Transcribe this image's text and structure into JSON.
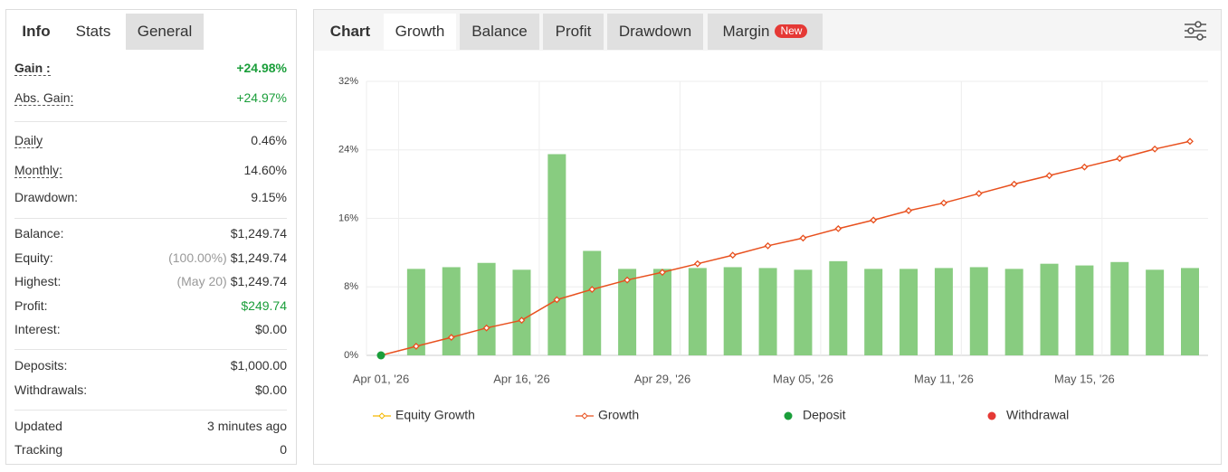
{
  "left_panel": {
    "tabs": [
      "Info",
      "Stats",
      "General"
    ],
    "groups": [
      [
        {
          "label": "Gain :",
          "value": "+24.98%",
          "color": "#1a9e3a",
          "bold": true,
          "underlined": true
        },
        {
          "label": "Abs. Gain:",
          "value": "+24.97%",
          "color": "#1a9e3a",
          "underlined": true
        }
      ],
      [
        {
          "label": "Daily",
          "value": "0.46%",
          "underlined": true
        },
        {
          "label": "Monthly:",
          "value": "14.60%",
          "underlined": true
        },
        {
          "label": "Drawdown:",
          "value": "9.15%"
        }
      ],
      [
        {
          "label": "Balance:",
          "value": "$1,249.74"
        },
        {
          "label": "Equity:",
          "note": "(100.00%)",
          "value": "$1,249.74"
        },
        {
          "label": "Highest:",
          "note": "(May 20)",
          "value": "$1,249.74"
        },
        {
          "label": "Profit:",
          "value": "$249.74",
          "color": "#1a9e3a"
        },
        {
          "label": "Interest:",
          "value": "$0.00"
        }
      ],
      [
        {
          "label": "Deposits:",
          "value": "$1,000.00"
        },
        {
          "label": "Withdrawals:",
          "value": "$0.00"
        }
      ],
      [
        {
          "label": "Updated",
          "value": "3 minutes ago"
        },
        {
          "label": "Tracking",
          "value": "0"
        }
      ]
    ]
  },
  "chart_panel": {
    "tabs": [
      {
        "label": "Chart"
      },
      {
        "label": "Growth"
      },
      {
        "label": "Balance"
      },
      {
        "label": "Profit"
      },
      {
        "label": "Drawdown"
      },
      {
        "label": "Margin",
        "badge": "New"
      }
    ]
  },
  "chart_data": {
    "type": "bar_line",
    "categories": [
      "Apr 01, '26",
      null,
      null,
      null,
      "Apr 16, '26",
      null,
      null,
      null,
      "Apr 29, '26",
      null,
      null,
      null,
      "May 05, '26",
      null,
      null,
      null,
      "May 11, '26",
      null,
      null,
      null,
      "May 15, '26",
      null,
      null,
      null
    ],
    "ylim": [
      0,
      32
    ],
    "yticks": [
      {
        "value": 0,
        "label": "0%"
      },
      {
        "value": 8,
        "label": "8%"
      },
      {
        "value": 16,
        "label": "16%"
      },
      {
        "value": 24,
        "label": "24%"
      },
      {
        "value": 32,
        "label": "32%"
      }
    ],
    "grid": true,
    "bars": {
      "color": "#88cc80",
      "values": [
        null,
        10.1,
        10.3,
        10.8,
        10.0,
        23.5,
        12.2,
        10.1,
        10.1,
        10.2,
        10.3,
        10.2,
        10.0,
        11.0,
        10.1,
        10.1,
        10.2,
        10.3,
        10.1,
        10.7,
        10.5,
        10.9,
        10.0,
        10.2
      ]
    },
    "series": [
      {
        "name": "Equity Growth",
        "color": "#f5b800",
        "style": "line",
        "values": [
          null,
          null,
          null,
          null,
          null,
          null,
          null,
          null,
          null,
          null,
          null,
          null,
          null,
          null,
          null,
          null,
          null,
          null,
          null,
          null,
          null,
          null,
          null,
          null
        ]
      },
      {
        "name": "Growth",
        "color": "#e8501e",
        "style": "line",
        "values": [
          0,
          1.06,
          2.1,
          3.2,
          4.1,
          6.5,
          7.7,
          8.8,
          9.7,
          10.7,
          11.7,
          12.8,
          13.7,
          14.8,
          15.8,
          16.9,
          17.8,
          18.9,
          20.0,
          21.0,
          22.0,
          23.0,
          24.1,
          25.0
        ]
      },
      {
        "name": "Deposit",
        "color": "#1a9e3a",
        "style": "dot",
        "values": [
          0,
          null,
          null,
          null,
          null,
          null,
          null,
          null,
          null,
          null,
          null,
          null,
          null,
          null,
          null,
          null,
          null,
          null,
          null,
          null,
          null,
          null,
          null,
          null
        ]
      },
      {
        "name": "Withdrawal",
        "color": "#e53935",
        "style": "dot",
        "values": [
          null,
          null,
          null,
          null,
          null,
          null,
          null,
          null,
          null,
          null,
          null,
          null,
          null,
          null,
          null,
          null,
          null,
          null,
          null,
          null,
          null,
          null,
          null,
          null
        ]
      }
    ]
  }
}
